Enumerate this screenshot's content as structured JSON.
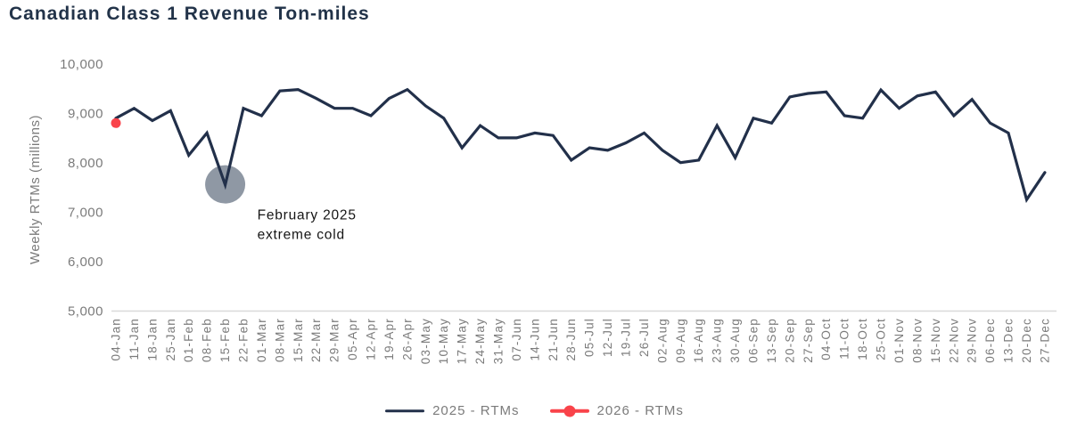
{
  "title": "Canadian Class 1 Revenue Ton-miles",
  "chart_data": {
    "type": "line",
    "title": "Canadian Class 1 Revenue Ton-miles",
    "xlabel": "",
    "ylabel": "Weekly RTMs (millions)",
    "ylim": [
      5000,
      10000
    ],
    "ytick_values": [
      10000,
      9000,
      8000,
      7000,
      6000,
      5000
    ],
    "ytick_labels": [
      "10,000",
      "9,000",
      "8,000",
      "7,000",
      "6,000",
      "5,000"
    ],
    "grid": false,
    "legend_position": "bottom-center",
    "categories": [
      "04-Jan",
      "11-Jan",
      "18-Jan",
      "25-Jan",
      "01-Feb",
      "08-Feb",
      "15-Feb",
      "22-Feb",
      "01-Mar",
      "08-Mar",
      "15-Mar",
      "22-Mar",
      "29-Mar",
      "05-Apr",
      "12-Apr",
      "19-Apr",
      "26-Apr",
      "03-May",
      "10-May",
      "17-May",
      "24-May",
      "31-May",
      "07-Jun",
      "14-Jun",
      "21-Jun",
      "28-Jun",
      "05-Jul",
      "12-Jul",
      "19-Jul",
      "26-Jul",
      "02-Aug",
      "09-Aug",
      "16-Aug",
      "23-Aug",
      "30-Aug",
      "06-Sep",
      "13-Sep",
      "20-Sep",
      "27-Sep",
      "04-Oct",
      "11-Oct",
      "18-Oct",
      "25-Oct",
      "01-Nov",
      "08-Nov",
      "15-Nov",
      "22-Nov",
      "29-Nov",
      "06-Dec",
      "13-Dec",
      "20-Dec",
      "27-Dec"
    ],
    "series": [
      {
        "name": "2025 - RTMs",
        "color": "#22304A",
        "values": [
          8900,
          9100,
          8850,
          9050,
          8150,
          8600,
          7550,
          9100,
          8950,
          9450,
          9480,
          9300,
          9100,
          9100,
          8950,
          9300,
          9480,
          9150,
          8900,
          8300,
          8750,
          8500,
          8500,
          8600,
          8550,
          8050,
          8300,
          8250,
          8400,
          8600,
          8250,
          8000,
          8050,
          8750,
          8100,
          8900,
          8800,
          9330,
          9400,
          9430,
          8950,
          8900,
          9470,
          9100,
          9350,
          9430,
          8950,
          9280,
          8800,
          8600,
          7250,
          7800
        ]
      },
      {
        "name": "2026 - RTMs",
        "color": "#F9434A",
        "values": [
          8800
        ]
      }
    ],
    "annotation": {
      "line1": "February 2025",
      "line2": "extreme cold",
      "target_category": "15-Feb",
      "target_value": 7550,
      "highlight_color": "#8F98A4",
      "text_color": "#151515"
    },
    "colors": {
      "title": "#223349",
      "axis_text": "#7b7b7b",
      "axis_line": "#d9d9d9",
      "series_2025": "#22304A",
      "series_2026": "#F9434A"
    }
  }
}
